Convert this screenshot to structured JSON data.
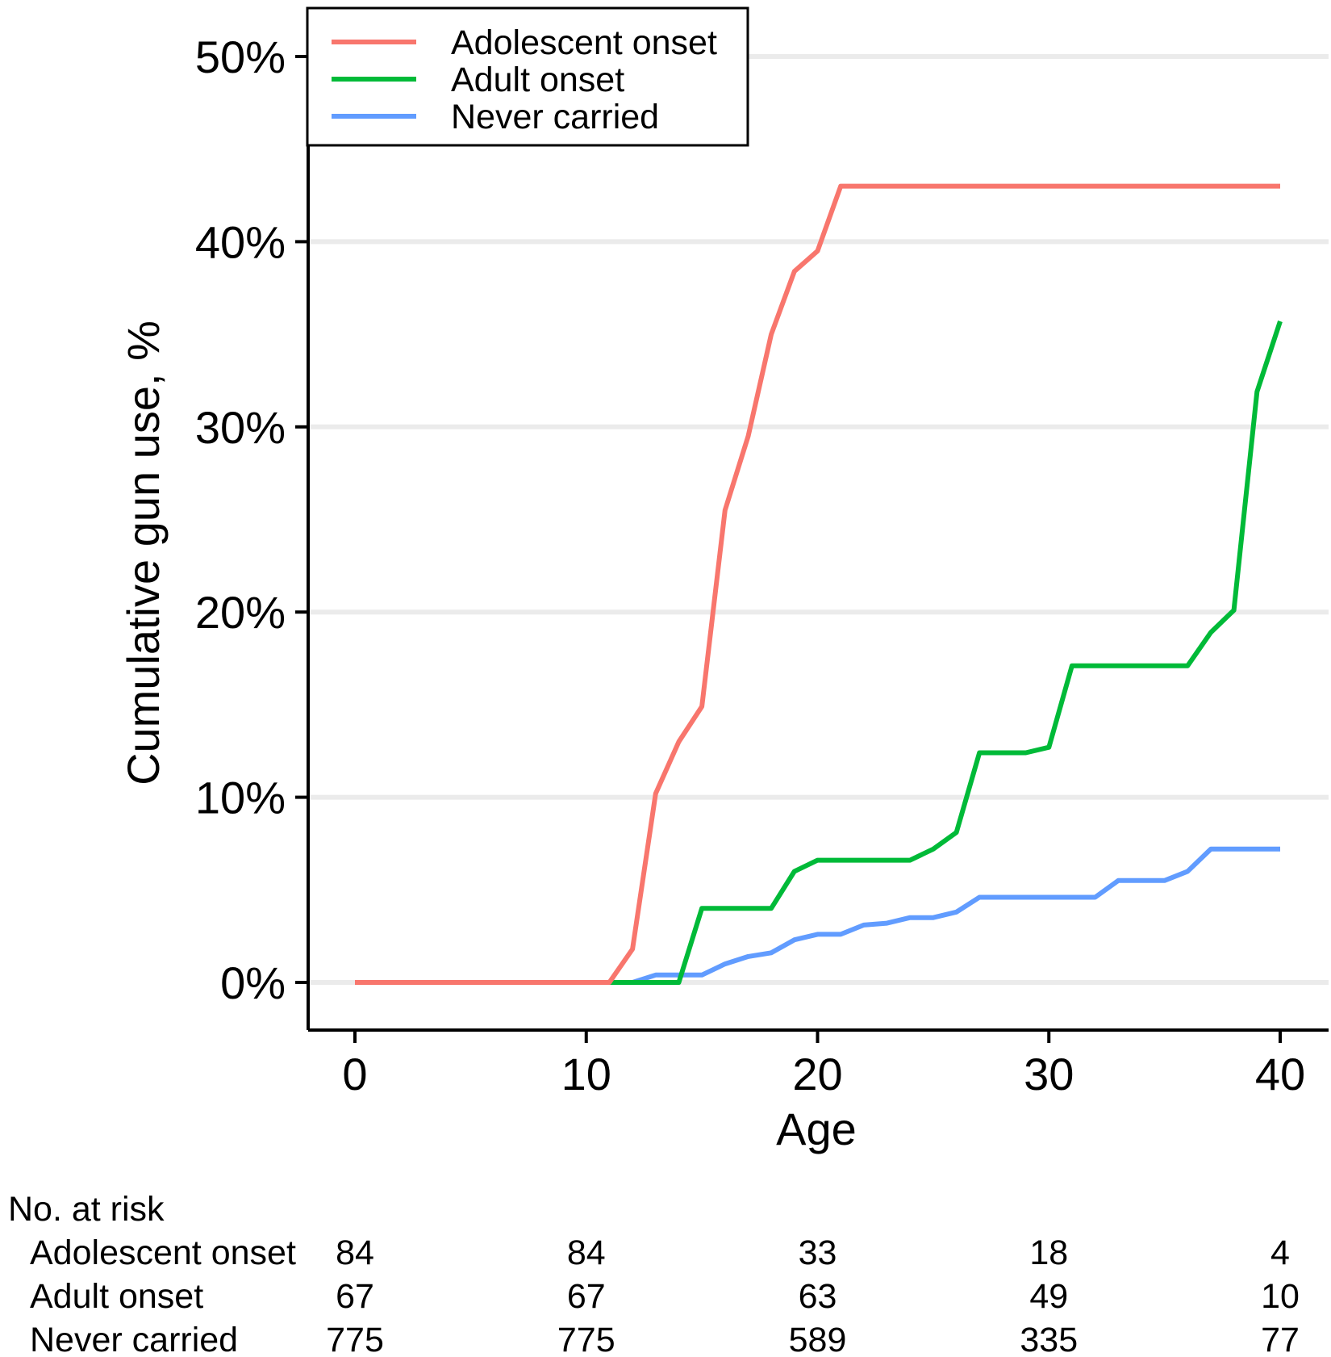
{
  "chart_data": {
    "type": "line",
    "ylabel": "Cumulative gun use, %",
    "xlabel": "Age",
    "xlim": [
      0,
      40
    ],
    "ylim": [
      0,
      50
    ],
    "x_ticks": [
      "0",
      "10",
      "20",
      "30",
      "40"
    ],
    "y_ticks": [
      "0%",
      "10%",
      "20%",
      "30%",
      "40%",
      "50%"
    ],
    "grid": "horizontal",
    "legend_position": "top-left",
    "series": [
      {
        "name": "Adolescent onset",
        "color": "#F8766D",
        "points": [
          [
            0,
            0
          ],
          [
            11,
            0
          ],
          [
            12,
            1.8
          ],
          [
            13,
            10.2
          ],
          [
            14,
            13
          ],
          [
            15,
            14.9
          ],
          [
            16,
            25.5
          ],
          [
            17,
            29.5
          ],
          [
            18,
            35
          ],
          [
            19,
            38.4
          ],
          [
            20,
            39.5
          ],
          [
            21,
            43
          ],
          [
            40,
            43
          ]
        ]
      },
      {
        "name": "Adult onset",
        "color": "#00BA38",
        "points": [
          [
            0,
            0
          ],
          [
            12,
            0
          ],
          [
            14,
            0
          ],
          [
            15,
            4
          ],
          [
            18,
            4
          ],
          [
            19,
            6
          ],
          [
            20,
            6.6
          ],
          [
            24,
            6.6
          ],
          [
            25,
            7.2
          ],
          [
            26,
            8.1
          ],
          [
            27,
            12.4
          ],
          [
            29,
            12.4
          ],
          [
            30,
            12.7
          ],
          [
            31,
            17.1
          ],
          [
            36,
            17.1
          ],
          [
            37,
            18.9
          ],
          [
            38,
            20.1
          ],
          [
            39,
            31.9
          ],
          [
            40,
            35.7
          ]
        ]
      },
      {
        "name": "Never carried",
        "color": "#619CFF",
        "points": [
          [
            0,
            0
          ],
          [
            12,
            0
          ],
          [
            13,
            0.4
          ],
          [
            15,
            0.4
          ],
          [
            16,
            1
          ],
          [
            17,
            1.4
          ],
          [
            18,
            1.6
          ],
          [
            19,
            2.3
          ],
          [
            20,
            2.6
          ],
          [
            21,
            2.6
          ],
          [
            22,
            3.1
          ],
          [
            23,
            3.2
          ],
          [
            24,
            3.5
          ],
          [
            25,
            3.5
          ],
          [
            26,
            3.8
          ],
          [
            27,
            4.6
          ],
          [
            32,
            4.6
          ],
          [
            33,
            5.5
          ],
          [
            35,
            5.5
          ],
          [
            36,
            6
          ],
          [
            37,
            7.2
          ],
          [
            40,
            7.2
          ]
        ]
      }
    ]
  },
  "risk_table": {
    "title": "No. at risk",
    "ages": [
      "0",
      "10",
      "20",
      "30",
      "40"
    ],
    "rows": [
      {
        "label": "Adolescent onset",
        "values": [
          "84",
          "84",
          "33",
          "18",
          "4"
        ]
      },
      {
        "label": "Adult onset",
        "values": [
          "67",
          "67",
          "63",
          "49",
          "10"
        ]
      },
      {
        "label": "Never carried",
        "values": [
          "775",
          "775",
          "589",
          "335",
          "77"
        ]
      }
    ]
  }
}
